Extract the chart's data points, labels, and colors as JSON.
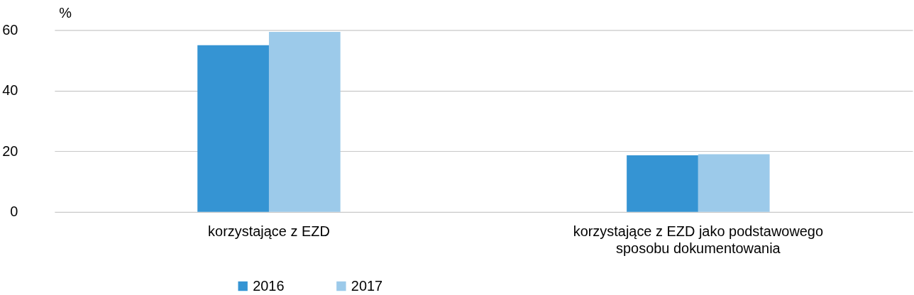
{
  "chart_data": {
    "type": "bar",
    "ylabel": "%",
    "categories": [
      "korzystające z EZD",
      "korzystające z EZD jako podstawowego sposobu dokumentowania"
    ],
    "series": [
      {
        "name": "2016",
        "color": "#3594d3",
        "values": [
          55,
          18.7
        ]
      },
      {
        "name": "2017",
        "color": "#9ccaea",
        "values": [
          59.4,
          19
        ]
      }
    ],
    "ylim": [
      0,
      60
    ],
    "yticks": [
      0,
      20,
      40,
      60
    ],
    "grid": "y",
    "legend": "bottom"
  }
}
